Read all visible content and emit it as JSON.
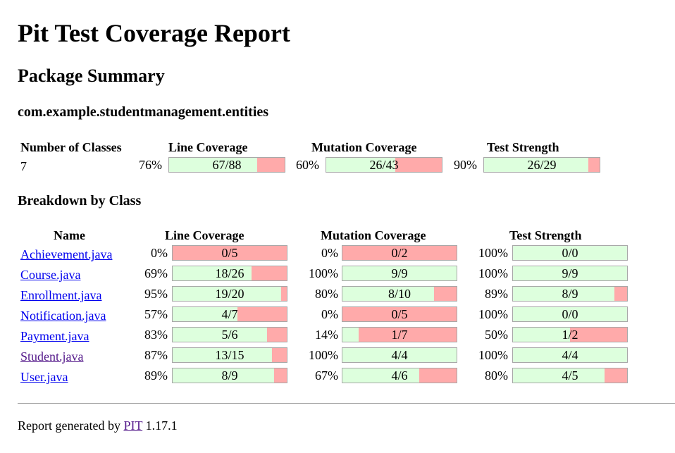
{
  "title": "Pit Test Coverage Report",
  "section_title": "Package Summary",
  "package_name": "com.example.studentmanagement.entities",
  "summary": {
    "headers": {
      "classes": "Number of Classes",
      "line": "Line Coverage",
      "mutation": "Mutation Coverage",
      "strength": "Test Strength"
    },
    "num_classes": "7",
    "line": {
      "pct": "76%",
      "ratio": "67/88",
      "fill": 0.76
    },
    "mutation": {
      "pct": "60%",
      "ratio": "26/43",
      "fill": 0.6
    },
    "strength": {
      "pct": "90%",
      "ratio": "26/29",
      "fill": 0.9
    }
  },
  "breakdown_title": "Breakdown by Class",
  "breakdown_headers": {
    "name": "Name",
    "line": "Line Coverage",
    "mutation": "Mutation Coverage",
    "strength": "Test Strength"
  },
  "classes": [
    {
      "name": "Achievement.java",
      "line": {
        "pct": "0%",
        "ratio": "0/5",
        "fill": 0.0
      },
      "mutation": {
        "pct": "0%",
        "ratio": "0/2",
        "fill": 0.0
      },
      "strength": {
        "pct": "100%",
        "ratio": "0/0",
        "fill": 1.0
      }
    },
    {
      "name": "Course.java",
      "line": {
        "pct": "69%",
        "ratio": "18/26",
        "fill": 0.69
      },
      "mutation": {
        "pct": "100%",
        "ratio": "9/9",
        "fill": 1.0
      },
      "strength": {
        "pct": "100%",
        "ratio": "9/9",
        "fill": 1.0
      }
    },
    {
      "name": "Enrollment.java",
      "line": {
        "pct": "95%",
        "ratio": "19/20",
        "fill": 0.95
      },
      "mutation": {
        "pct": "80%",
        "ratio": "8/10",
        "fill": 0.8
      },
      "strength": {
        "pct": "89%",
        "ratio": "8/9",
        "fill": 0.89
      }
    },
    {
      "name": "Notification.java",
      "line": {
        "pct": "57%",
        "ratio": "4/7",
        "fill": 0.57
      },
      "mutation": {
        "pct": "0%",
        "ratio": "0/5",
        "fill": 0.0
      },
      "strength": {
        "pct": "100%",
        "ratio": "0/0",
        "fill": 1.0
      }
    },
    {
      "name": "Payment.java",
      "line": {
        "pct": "83%",
        "ratio": "5/6",
        "fill": 0.83
      },
      "mutation": {
        "pct": "14%",
        "ratio": "1/7",
        "fill": 0.14
      },
      "strength": {
        "pct": "50%",
        "ratio": "1/2",
        "fill": 0.5
      }
    },
    {
      "name": "Student.java",
      "line": {
        "pct": "87%",
        "ratio": "13/15",
        "fill": 0.87
      },
      "mutation": {
        "pct": "100%",
        "ratio": "4/4",
        "fill": 1.0
      },
      "strength": {
        "pct": "100%",
        "ratio": "4/4",
        "fill": 1.0
      }
    },
    {
      "name": "User.java",
      "line": {
        "pct": "89%",
        "ratio": "8/9",
        "fill": 0.89
      },
      "mutation": {
        "pct": "67%",
        "ratio": "4/6",
        "fill": 0.67
      },
      "strength": {
        "pct": "80%",
        "ratio": "4/5",
        "fill": 0.8
      }
    }
  ],
  "footer": {
    "prefix": "Report generated by",
    "link": "PIT",
    "version": "1.17.1"
  },
  "colors": {
    "covered": "#ddffdd",
    "uncovered": "#ffaaaa",
    "link": "#0000ee",
    "visited_link": "#551a8b"
  }
}
